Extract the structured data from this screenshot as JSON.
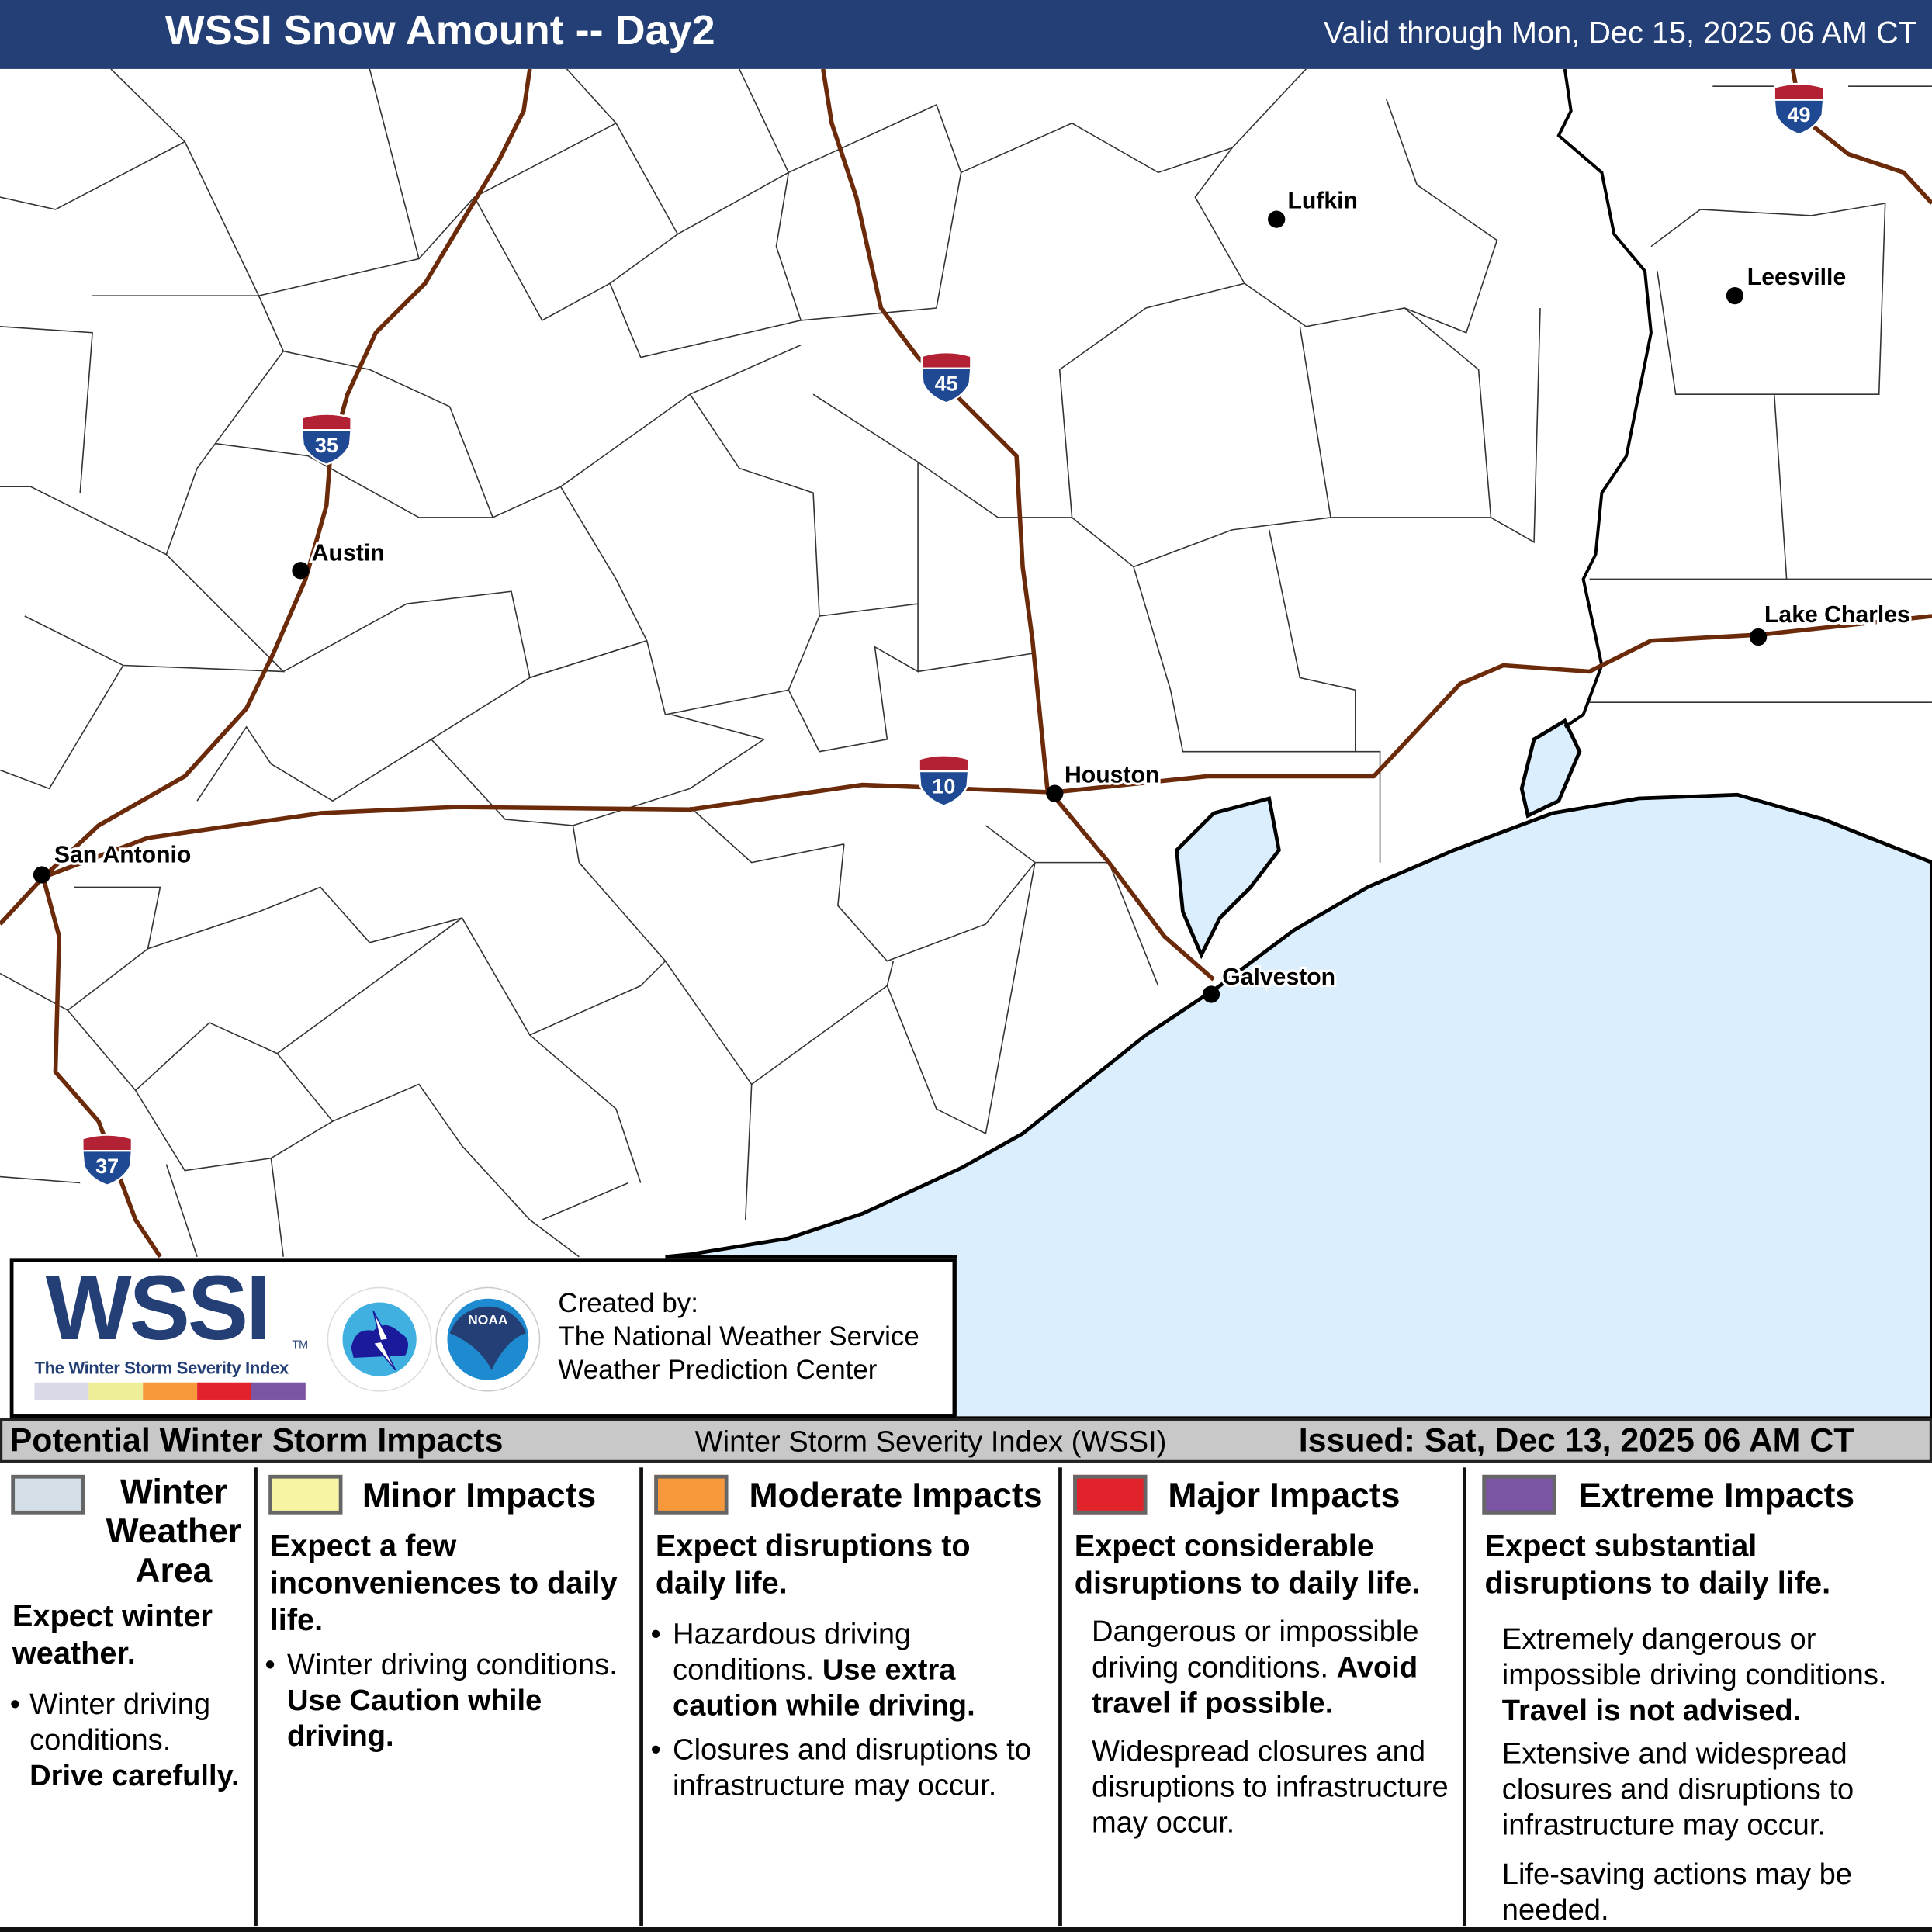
{
  "header": {
    "title": "WSSI Snow Amount -- Day2",
    "valid": "Valid through Mon, Dec 15, 2025 06 AM CT"
  },
  "map": {
    "water_color": "#dbeefd",
    "highway_color": "#6b2a0a",
    "cities": [
      {
        "name": "Lufkin"
      },
      {
        "name": "Leesville"
      },
      {
        "name": "Austin"
      },
      {
        "name": "San Antonio"
      },
      {
        "name": "Houston"
      },
      {
        "name": "Galveston"
      },
      {
        "name": "Lake Charles"
      }
    ],
    "shields": [
      "35",
      "45",
      "10",
      "37",
      "49"
    ]
  },
  "logo": {
    "wordmark": "WSSI",
    "tm": "TM",
    "subtitle": "The Winter Storm Severity Index",
    "nws_text": "NATIONAL WEATHER SERVICE",
    "noaa_text": "NOAA",
    "scale_colors": [
      "#d9d9e8",
      "#eeee99",
      "#f7993a",
      "#e3232c",
      "#7b55a3"
    ],
    "credit": [
      "Created by:",
      "The National Weather Service",
      "Weather Prediction Center"
    ]
  },
  "legend_header": {
    "left": "Potential Winter Storm Impacts",
    "middle": "Winter Storm Severity Index (WSSI)",
    "right": "Issued: Sat, Dec 13, 2025 06 AM CT"
  },
  "legend": [
    {
      "name_lines": [
        "Winter",
        "Weather",
        "Area"
      ],
      "color": "#d3dee6",
      "head": "Expect winter weather.",
      "b1": "Winter driving conditions.",
      "b1_bold": "Drive carefully."
    },
    {
      "name": "Minor Impacts",
      "color": "#f7f4a3",
      "head": "Expect a few inconveniences to daily life.",
      "b1": "Winter driving conditions.",
      "b1_bold": "Use Caution while driving."
    },
    {
      "name": "Moderate Impacts",
      "color": "#f7993a",
      "head": "Expect disruptions to daily life.",
      "b1": "Hazardous driving conditions.",
      "b1_bold": "Use extra caution while driving.",
      "b2": "Closures and disruptions to infrastructure may occur."
    },
    {
      "name": "Major Impacts",
      "color": "#e3232c",
      "head": "Expect considerable disruptions to daily life.",
      "b1": "Dangerous or impossible driving conditions.",
      "b1_bold": "Avoid travel if possible.",
      "b2": "Widespread closures and disruptions to infrastructure may occur."
    },
    {
      "name": "Extreme Impacts",
      "color": "#7b55a3",
      "head": "Expect substantial disruptions to daily life.",
      "b1": "Extremely dangerous or impossible driving conditions.",
      "b1_bold": "Travel is not advised.",
      "b2": "Extensive and widespread closures and disruptions to infrastructure may occur.",
      "b3": "Life-saving actions may be needed."
    }
  ]
}
